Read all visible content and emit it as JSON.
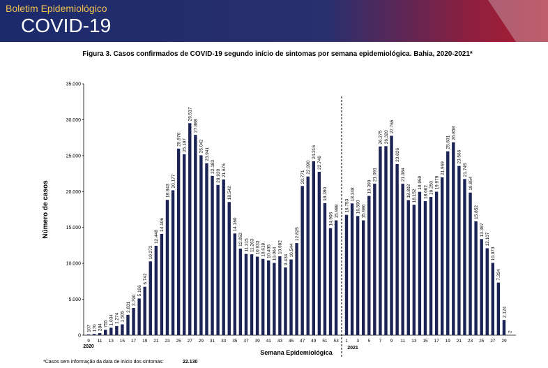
{
  "header": {
    "kicker": "Boletim Epidemiológico",
    "brand": "COVID-19"
  },
  "chart_data": {
    "type": "bar",
    "title": "Figura 3. Casos confirmados de COVID-19 segundo início de sintomas por semana epidemiológica. Bahia, 2020-2021*",
    "y_label": "Número de casos",
    "x_label": "Semana Epidemiológica",
    "year_labels": [
      "2020",
      "2021"
    ],
    "footnote": "*Casos sem informação da data de início dos sintomas:",
    "footnote_value": "22.130",
    "color": "#1c2456",
    "categories": [
      "9",
      null,
      "11",
      null,
      "13",
      null,
      "15",
      null,
      "17",
      null,
      "19",
      null,
      "21",
      null,
      "23",
      null,
      "25",
      null,
      "27",
      null,
      "29",
      null,
      "31",
      null,
      "33",
      null,
      "35",
      null,
      "37",
      null,
      "39",
      null,
      "41",
      null,
      "43",
      null,
      "45",
      null,
      "47",
      null,
      "49",
      null,
      "51",
      null,
      "53",
      "1",
      null,
      "3",
      null,
      "5",
      null,
      "7",
      null,
      "9",
      null,
      "11",
      null,
      "13",
      null,
      "15",
      null,
      "17",
      null,
      "19",
      null,
      "21",
      null,
      "23",
      null,
      "25",
      null,
      "27",
      null,
      "29",
      null
    ],
    "values": [
      107,
      170,
      284,
      755,
      1034,
      1274,
      1505,
      2831,
      3790,
      5106,
      6742,
      10272,
      12448,
      14106,
      18843,
      20177,
      25976,
      25197,
      29517,
      27888,
      25042,
      23941,
      22183,
      20920,
      21676,
      18542,
      14160,
      12052,
      11315,
      11263,
      10933,
      10618,
      10405,
      10064,
      10982,
      9434,
      10544,
      12825,
      20771,
      22090,
      24216,
      22746,
      18390,
      14906,
      15988,
      16753,
      18348,
      16590,
      15986,
      19390,
      21091,
      26275,
      26320,
      27765,
      23826,
      21084,
      18802,
      18152,
      19959,
      18662,
      19250,
      19979,
      21969,
      25601,
      26858,
      23566,
      21745,
      19854,
      15852,
      13387,
      12107,
      10073,
      7324,
      2124,
      2
    ],
    "value_labels": [
      "107",
      "170",
      "284",
      "755",
      "1.034",
      "1.274",
      "1.505",
      "2.831",
      "3.790",
      "5.106",
      "6.742",
      "10.272",
      "12.448",
      "14.106",
      "18.843",
      "20.177",
      "25.976",
      "25.197",
      "29.517",
      "27.888",
      "25.042",
      "23.941",
      "22.183",
      "20.920",
      "21.676",
      "18.542",
      "14.160",
      "12.052",
      "11.315",
      "11.263",
      "10.933",
      "10.618",
      "10.405",
      "10.064",
      "10.982",
      "9.434",
      "10.544",
      "12.825",
      "20.771",
      "22.090",
      "24.216",
      "22.746",
      "18.390",
      "14.906",
      "15.988",
      "16.753",
      "18.348",
      "16.590",
      "15.986",
      "19.390",
      "21.091",
      "26.275",
      "26.320",
      "27.765",
      "23.826",
      "21.084",
      "18.802",
      "18.152",
      "19.959",
      "18.662",
      "19.250",
      "19.979",
      "21.969",
      "25.601",
      "26.858",
      "23.566",
      "21.745",
      "19.854",
      "15.852",
      "13.387",
      "12.107",
      "10.073",
      "7.324",
      "2.124",
      "2"
    ],
    "ylim": [
      0,
      35000
    ],
    "yticks": [
      0,
      {
        "value": 5000,
        "label": "5.000"
      },
      {
        "value": 10000,
        "label": "10.000"
      },
      {
        "value": 15000,
        "label": "15.000"
      },
      {
        "value": 20000,
        "label": "20.000"
      },
      {
        "value": 25000,
        "label": "25.000"
      },
      {
        "value": 30000,
        "label": "30.000"
      },
      {
        "value": 35000,
        "label": "35.000"
      }
    ]
  }
}
